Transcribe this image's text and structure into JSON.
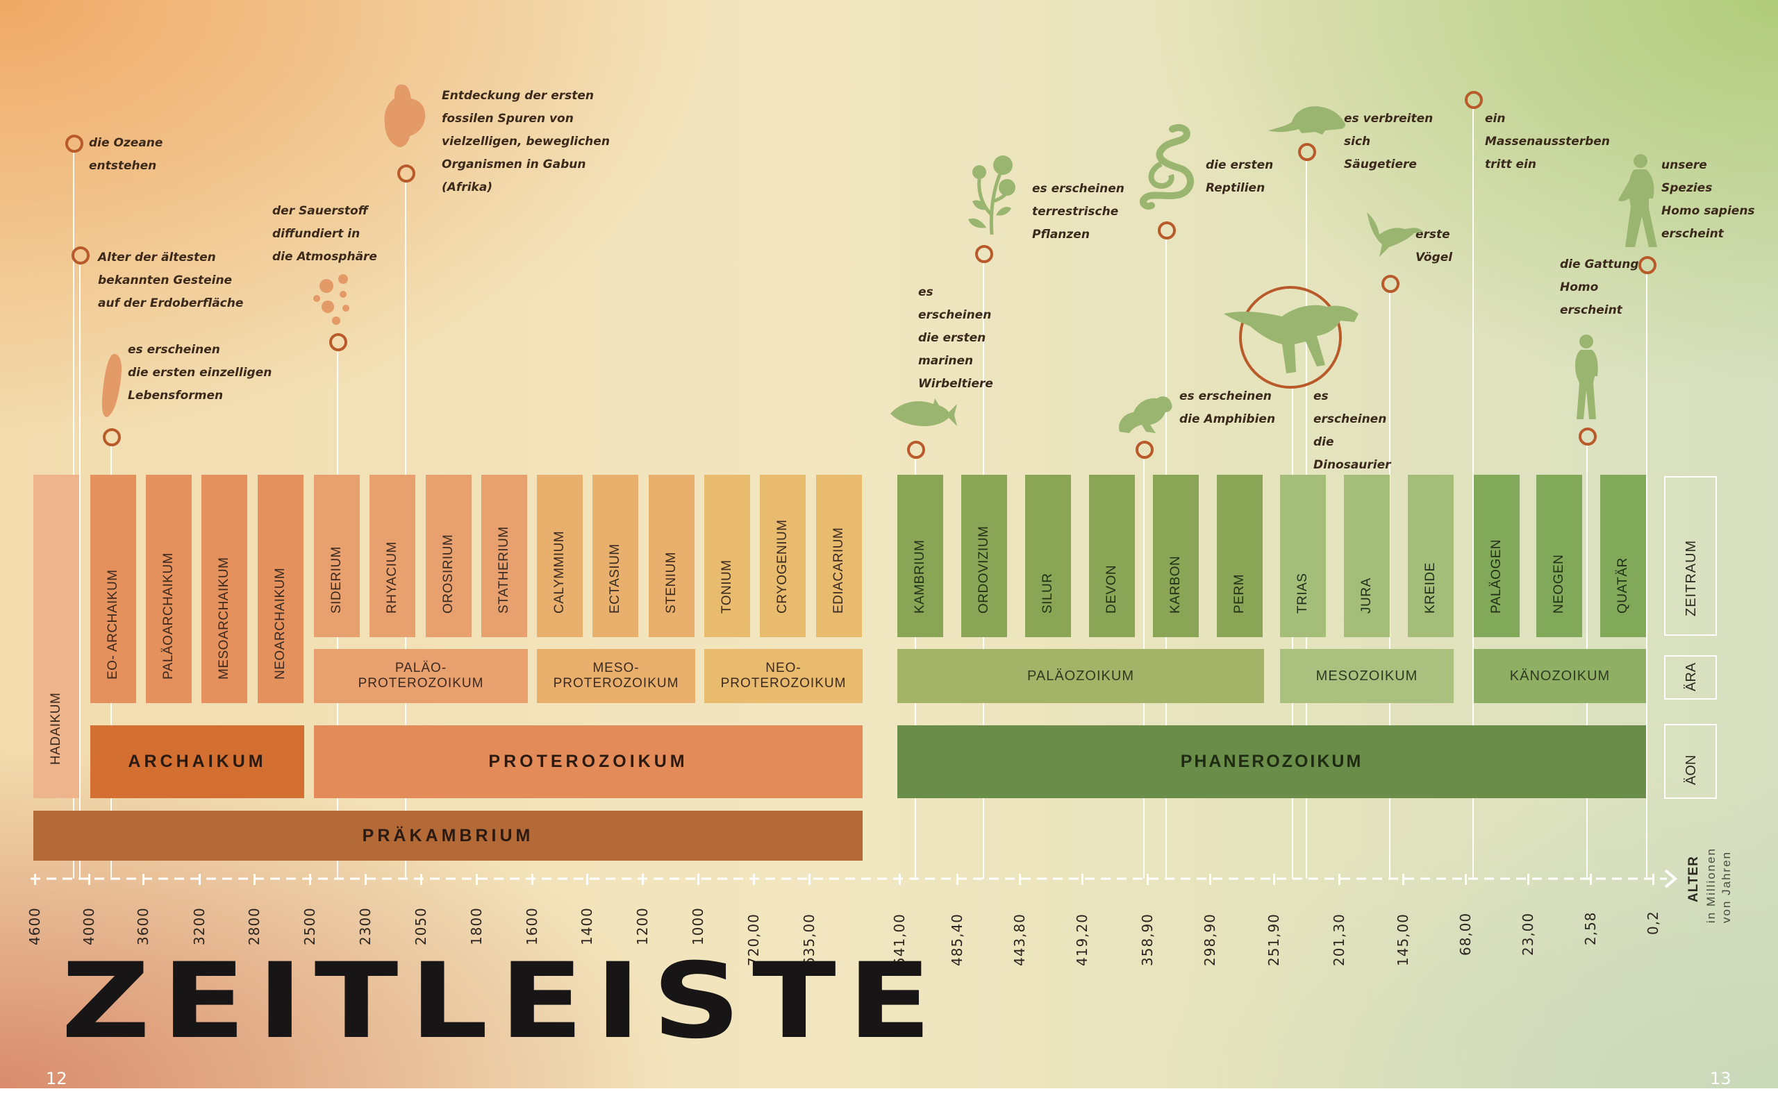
{
  "title": "ZEITLEISTE",
  "page_left": "12",
  "page_right": "13",
  "axis_label": {
    "main": "ALTER",
    "sub1": "in Millionen",
    "sub2": "von Jahren"
  },
  "row_labels": {
    "zeitraum": "ZEITRAUM",
    "aera": "ÄRA",
    "aeon": "ÄON"
  },
  "colors": {
    "archaikum_dark": "#d46f32",
    "proterozoikum": "#e38c5a",
    "praekambrium": "#b36a37",
    "phanerozoikum": "#6a8e4a",
    "circle_stroke": "#b85a2a",
    "icon_orange": "#e39a67",
    "icon_green": "#9ab56f"
  },
  "periods": [
    {
      "label": "HADAIKUM",
      "color": "#eeb48b"
    },
    {
      "label": "EO- ARCHAIKUM",
      "color": "#e5915d"
    },
    {
      "label": "PALÄOARCHAIKUM",
      "color": "#e5915d"
    },
    {
      "label": "MESOARCHAIKUM",
      "color": "#e5915d"
    },
    {
      "label": "NEOARCHAIKUM",
      "color": "#e5915d"
    },
    {
      "label": "SIDERIUM",
      "color": "#e9a06f"
    },
    {
      "label": "RHYACIUM",
      "color": "#e9a06f"
    },
    {
      "label": "OROSIRIUM",
      "color": "#e9a06f"
    },
    {
      "label": "STATHERIUM",
      "color": "#e9a06f"
    },
    {
      "label": "CALYMMIUM",
      "color": "#e9b06d"
    },
    {
      "label": "ECTASIUM",
      "color": "#e9b06d"
    },
    {
      "label": "STENIUM",
      "color": "#e9b06d"
    },
    {
      "label": "TONIUM",
      "color": "#e9bb6f"
    },
    {
      "label": "CRYOGENIUM",
      "color": "#e9bb6f"
    },
    {
      "label": "EDIACARIUM",
      "color": "#e9bb6f"
    },
    {
      "label": "KAMBRIUM",
      "color": "#8aa556"
    },
    {
      "label": "ORDOVIZIUM",
      "color": "#8aa556"
    },
    {
      "label": "SILUR",
      "color": "#8aa556"
    },
    {
      "label": "DEVON",
      "color": "#8aa556"
    },
    {
      "label": "KARBON",
      "color": "#8aa556"
    },
    {
      "label": "PERM",
      "color": "#8aa556"
    },
    {
      "label": "TRIAS",
      "color": "#a4bd78"
    },
    {
      "label": "JURA",
      "color": "#a4bd78"
    },
    {
      "label": "KREIDE",
      "color": "#a4bd78"
    },
    {
      "label": "PALÄOGEN",
      "color": "#82a85a"
    },
    {
      "label": "NEOGEN",
      "color": "#82a85a"
    },
    {
      "label": "QUATÄR",
      "color": "#82a85a"
    }
  ],
  "eras": [
    {
      "line1": "PALÄO-",
      "line2": "PROTEROZOIKUM",
      "color": "#e9a06f"
    },
    {
      "line1": "MESO-",
      "line2": "PROTEROZOIKUM",
      "color": "#e9b06d"
    },
    {
      "line1": "NEO-",
      "line2": "PROTEROZOIKUM",
      "color": "#e9bb6f"
    },
    {
      "line1": "PALÄOZOIKUM",
      "line2": "",
      "color": "#a3b367"
    },
    {
      "line1": "MESOZOIKUM",
      "line2": "",
      "color": "#a9c07f"
    },
    {
      "line1": "KÄNOZOIKUM",
      "line2": "",
      "color": "#8fb064"
    }
  ],
  "eons": [
    {
      "label": "ARCHAIKUM"
    },
    {
      "label": "PROTEROZOIKUM"
    },
    {
      "label": "PHANEROZOIKUM"
    }
  ],
  "supereon": {
    "label": "PRÄKAMBRIUM"
  },
  "ticks": [
    "4600",
    "4000",
    "3600",
    "3200",
    "2800",
    "2500",
    "2300",
    "2050",
    "1800",
    "1600",
    "1400",
    "1200",
    "1000",
    "720,00",
    "635,00",
    "541,00",
    "485,40",
    "443,80",
    "419,20",
    "358,90",
    "298,90",
    "251,90",
    "201,30",
    "145,00",
    "68,00",
    "23,00",
    "2,58",
    "0,2"
  ],
  "events": [
    {
      "lines": [
        "die Ozeane",
        "entstehen"
      ]
    },
    {
      "lines": [
        "Alter der ältesten",
        "bekannten Gesteine",
        "auf der Erdoberfläche"
      ]
    },
    {
      "lines": [
        "es erscheinen",
        "die ersten einzelligen",
        "Lebensformen"
      ]
    },
    {
      "lines": [
        "der Sauerstoff",
        "diffundiert in",
        "die Atmosphäre"
      ]
    },
    {
      "lines": [
        "Entdeckung der ersten",
        "fossilen Spuren von",
        "vielzelligen, beweglichen",
        "Organismen in Gabun",
        "(Afrika)"
      ]
    },
    {
      "lines": [
        "es",
        "erscheinen",
        "die ersten",
        "marinen",
        "Wirbeltiere"
      ]
    },
    {
      "lines": [
        "es erscheinen",
        "terrestrische",
        "Pflanzen"
      ]
    },
    {
      "lines": [
        "es erscheinen",
        "die Amphibien"
      ]
    },
    {
      "lines": [
        "die ersten",
        "Reptilien"
      ]
    },
    {
      "lines": [
        "es",
        "erscheinen",
        "die",
        "Dinosaurier"
      ]
    },
    {
      "lines": [
        "es verbreiten",
        "sich",
        "Säugetiere"
      ]
    },
    {
      "lines": [
        "erste",
        "Vögel"
      ]
    },
    {
      "lines": [
        "ein",
        "Massenaussterben",
        "tritt ein"
      ]
    },
    {
      "lines": [
        "die Gattung",
        "Homo",
        "erscheint"
      ]
    },
    {
      "lines": [
        "unsere",
        "Spezies",
        "Homo sapiens",
        "erscheint"
      ]
    }
  ]
}
